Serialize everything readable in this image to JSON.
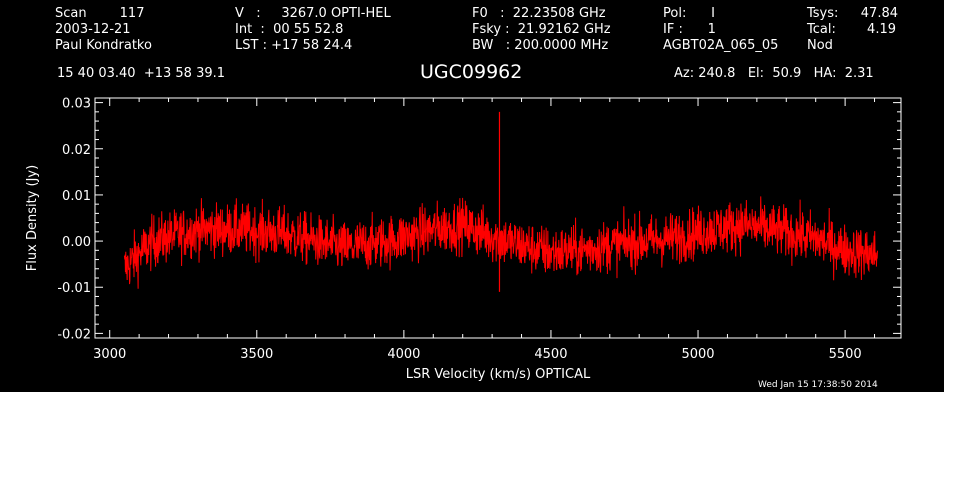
{
  "header": {
    "col1": [
      "Scan        117",
      "2003-12-21",
      "Paul Kondratko"
    ],
    "col2": [
      "V   :     3267.0 OPTI-HEL",
      "Int  :  00 55 52.8",
      "LST : +17 58 24.4"
    ],
    "col3": [
      "F0   :  22.23508 GHz",
      "Fsky :  21.92162 GHz",
      "BW   : 200.0000 MHz"
    ],
    "col4": [
      "Pol:      I",
      "IF :      1",
      "AGBT02A_065_05"
    ],
    "col5": [
      "Tsys:",
      "Tcal:",
      "Nod"
    ],
    "col5_values": [
      "47.84",
      "4.19",
      ""
    ],
    "coords": "15 40 03.40  +13 58 39.1",
    "source": "UGC09962",
    "azel": "Az: 240.8   El:  50.9   HA:  2.31"
  },
  "footer": {
    "date": "Wed Jan 15 17:38:50 2014"
  },
  "colors": {
    "background": "#000000",
    "axes": "#ffffff",
    "spectrum": "#ff0000"
  },
  "chart_data": {
    "type": "line",
    "xlabel": "LSR Velocity (km/s) OPTICAL",
    "ylabel": "Flux Density (Jy)",
    "xlim": [
      2950,
      5690
    ],
    "ylim": [
      -0.021,
      0.031
    ],
    "xticks": [
      3000,
      3500,
      4000,
      4500,
      5000,
      5500
    ],
    "xtick_labels": [
      "3000",
      "3500",
      "4000",
      "4500",
      "5000",
      "5500"
    ],
    "yticks": [
      -0.02,
      -0.01,
      0.0,
      0.01,
      0.02,
      0.03
    ],
    "ytick_labels": [
      "-0.02",
      "-0.01",
      "0.00",
      "0.01",
      "0.02",
      "0.03"
    ],
    "series": [
      {
        "noise_rms": 0.0028,
        "baseline_x": [
          3050,
          3080,
          3150,
          3300,
          3450,
          3600,
          3800,
          3950,
          4100,
          4200,
          4300,
          4400,
          4500,
          4600,
          4750,
          4900,
          5050,
          5150,
          5250,
          5400,
          5500,
          5610
        ],
        "baseline_y": [
          -0.006,
          -0.004,
          0.0,
          0.0025,
          0.0025,
          0.0015,
          -0.0015,
          0.0,
          0.0025,
          0.0035,
          0.001,
          -0.001,
          -0.0025,
          -0.002,
          -0.0005,
          0.0005,
          0.0025,
          0.0035,
          0.0025,
          0.0005,
          -0.002,
          -0.003
        ],
        "spike_x": 4325,
        "spike_y": [
          -0.011,
          0.028
        ]
      }
    ]
  }
}
